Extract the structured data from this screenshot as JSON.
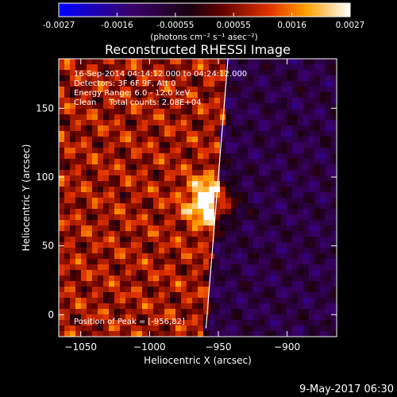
{
  "colorbar": {
    "ticks": [
      "-0.0027",
      "-0.0016",
      "-0.00055",
      "0.00055",
      "0.0016",
      "0.0027"
    ],
    "unit_label": "(photons cm⁻² s⁻¹ asec⁻²)"
  },
  "chart_data": {
    "type": "heatmap",
    "title": "Reconstructed RHESSI Image",
    "xlabel": "Heliocentric X (arcsec)",
    "ylabel": "Heliocentric Y (arcsec)",
    "xlim": [
      -1066,
      -864
    ],
    "ylim": [
      -16,
      186
    ],
    "xticks": [
      -1050,
      -1000,
      -950,
      -900
    ],
    "yticks": [
      0,
      50,
      100,
      150
    ],
    "value_range": [
      -0.0027,
      0.0027
    ],
    "colormap": "RHESSI color table (blue → purple → red → orange → yellow → white)",
    "peak_position": [
      -956,
      82
    ],
    "limb_line": {
      "x1": -959,
      "y1": -10,
      "x2": -943,
      "y2": 186
    },
    "annotations": [
      "16-Sep-2014 04:14:12.000 to 04:24:12.000",
      "Detectors: 3F 6F 9F, Att 0",
      "Energy Range: 6.0 - 12.0 keV",
      "Clean     Total counts: 2.08E+04",
      "Position of Peak = [-956,82]"
    ]
  },
  "footer": {
    "timestamp": "9-May-2017 06:30"
  }
}
